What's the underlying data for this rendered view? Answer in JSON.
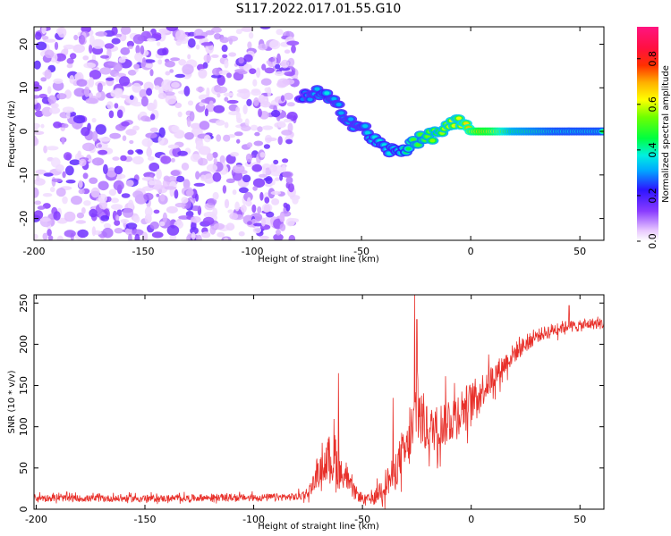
{
  "title": "S117.2022.017.01.55.G10",
  "chart_data": [
    {
      "type": "heatmap",
      "xlabel": "Height of straight line (km)",
      "ylabel": "Frequency (Hz)",
      "xlim": [
        -200,
        61
      ],
      "ylim": [
        -25,
        24
      ],
      "x_ticks": [
        -200,
        -150,
        -100,
        -50,
        0,
        50
      ],
      "y_ticks": [
        -20,
        -10,
        0,
        10,
        20
      ],
      "colorbar": {
        "label": "Normalized spectral amplitude",
        "range": [
          0,
          0.94
        ],
        "ticks": [
          0.0,
          0.2,
          0.4,
          0.6,
          0.8
        ],
        "colormap": "white-purple-blue-cyan-green-yellow-red-magenta"
      },
      "ridge": {
        "description_free": true,
        "x": [
          -78,
          -72,
          -66,
          -62,
          -58,
          -54,
          -50,
          -46,
          -42,
          -38,
          -34,
          -30,
          -26,
          -22,
          -18,
          -14,
          -10,
          -6,
          -2,
          0,
          5,
          10,
          20,
          30,
          40,
          50,
          61
        ],
        "y": [
          7,
          9,
          8,
          6,
          4,
          2,
          1,
          -1,
          -3,
          -4,
          -5,
          -4,
          -2,
          -2,
          -1,
          0,
          1,
          2,
          1,
          0,
          0,
          0,
          0,
          0,
          0,
          0,
          0
        ],
        "amplitude": [
          0.3,
          0.35,
          0.4,
          0.35,
          0.35,
          0.35,
          0.35,
          0.4,
          0.4,
          0.4,
          0.4,
          0.45,
          0.55,
          0.55,
          0.6,
          0.6,
          0.65,
          0.65,
          0.7,
          0.75,
          0.9,
          0.85,
          0.6,
          0.55,
          0.5,
          0.5,
          0.5
        ]
      },
      "noise_region": {
        "x_from": -200,
        "x_to": -80
      }
    },
    {
      "type": "line",
      "xlabel": "Height of straight line (km)",
      "ylabel": "SNR (10 * v/v)",
      "xlim": [
        -201,
        61
      ],
      "ylim": [
        0,
        260
      ],
      "x_ticks": [
        -200,
        -150,
        -100,
        -50,
        0,
        50
      ],
      "y_ticks": [
        0,
        50,
        100,
        150,
        200,
        250
      ],
      "color": "#e8302a",
      "envelope": {
        "x": [
          -201,
          -180,
          -160,
          -140,
          -120,
          -100,
          -80,
          -75,
          -70,
          -66,
          -63,
          -61,
          -58,
          -55,
          -50,
          -45,
          -40,
          -36,
          -33,
          -30,
          -27,
          -25,
          -23,
          -20,
          -15,
          -10,
          -5,
          0,
          5,
          10,
          15,
          20,
          25,
          30,
          35,
          40,
          45,
          50,
          55,
          61
        ],
        "mean": [
          14,
          13,
          13,
          13,
          14,
          14,
          15,
          20,
          45,
          60,
          65,
          45,
          40,
          25,
          12,
          12,
          30,
          40,
          60,
          70,
          90,
          130,
          110,
          95,
          100,
          110,
          120,
          130,
          145,
          160,
          175,
          190,
          200,
          210,
          215,
          220,
          222,
          222,
          225,
          225
        ],
        "spread": [
          6,
          6,
          6,
          6,
          6,
          6,
          7,
          10,
          20,
          35,
          70,
          30,
          20,
          15,
          8,
          10,
          25,
          30,
          35,
          40,
          45,
          70,
          60,
          40,
          40,
          45,
          40,
          35,
          30,
          25,
          20,
          18,
          15,
          12,
          12,
          12,
          10,
          10,
          10,
          10
        ]
      },
      "peaks": [
        [
          -61,
          165
        ],
        [
          -26,
          262
        ],
        [
          -25,
          230
        ],
        [
          -36,
          135
        ],
        [
          45,
          247
        ]
      ]
    }
  ]
}
